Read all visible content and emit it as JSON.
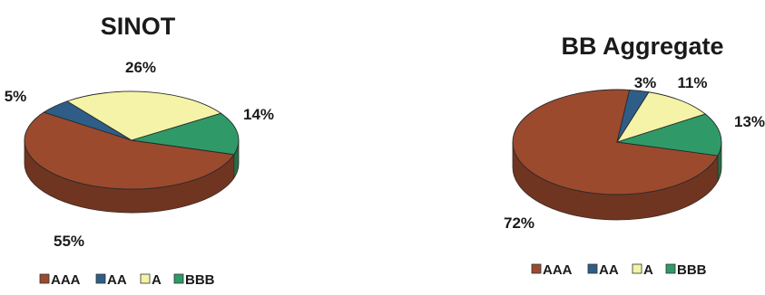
{
  "chart_data": [
    {
      "type": "pie",
      "title": "SINOT",
      "categories": [
        "AAA",
        "AA",
        "A",
        "BBB"
      ],
      "values": [
        55,
        5,
        26,
        14
      ],
      "labels": [
        "55%",
        "5%",
        "26%",
        "14%"
      ],
      "legend": [
        "AAA",
        "AA",
        "A",
        "BBB"
      ],
      "legend_position": "bottom",
      "style": "3d"
    },
    {
      "type": "pie",
      "title": "BB Aggregate",
      "categories": [
        "AAA",
        "AA",
        "A",
        "BBB"
      ],
      "values": [
        72,
        3,
        11,
        13
      ],
      "labels": [
        "72%",
        "3%",
        "11%",
        "13%"
      ],
      "legend": [
        "AAA",
        "AA",
        "A",
        "BBB"
      ],
      "legend_position": "bottom",
      "style": "3d"
    }
  ],
  "colors": {
    "AAA": "#9b4a2e",
    "AA": "#2e5e87",
    "A": "#f4f3a7",
    "BBB": "#2f9a68"
  }
}
